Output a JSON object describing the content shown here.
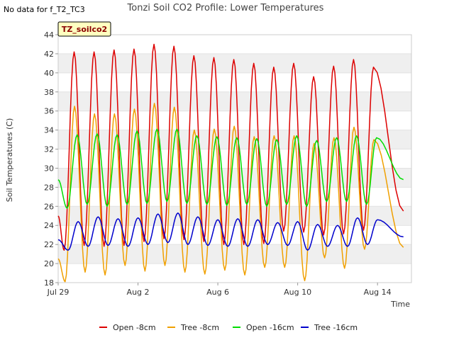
{
  "header": {
    "nodata_text": "No data for f_T2_TC3"
  },
  "chart_data": {
    "type": "line",
    "title": "Tonzi Soil CO2 Profile: Lower Temperatures",
    "xlabel": "Time",
    "ylabel": "Soil Temperatures (C)",
    "badge": "TZ_soilco2",
    "ylim": [
      18,
      44
    ],
    "yticks": [
      18,
      20,
      22,
      24,
      26,
      28,
      30,
      32,
      34,
      36,
      38,
      40,
      42,
      44
    ],
    "xlim": [
      0,
      17.7
    ],
    "xticks": [
      {
        "value": 0,
        "label": "Jul 29"
      },
      {
        "value": 4,
        "label": "Aug 2"
      },
      {
        "value": 8,
        "label": "Aug 6"
      },
      {
        "value": 12,
        "label": "Aug 10"
      },
      {
        "value": 16,
        "label": "Aug 14"
      }
    ],
    "x_unit": "days since Jul 29",
    "grid": "horizontal bands",
    "legend_position": "bottom",
    "series": [
      {
        "name": "Open -8cm",
        "color": "#dd0000",
        "daily_peaks": [
          42.2,
          42.2,
          42.4,
          42.5,
          43.0,
          42.8,
          41.8,
          41.6,
          41.4,
          41.0,
          40.6,
          41.0,
          39.6,
          40.7,
          41.4,
          40.6
        ],
        "daily_troughs": [
          21.4,
          21.9,
          21.8,
          21.9,
          22.3,
          22.6,
          22.5,
          22.3,
          22.0,
          22.0,
          22.1,
          23.4,
          23.3,
          23.0,
          23.1,
          23.5
        ],
        "start": 25.0,
        "end": 25.5
      },
      {
        "name": "Tree -8cm",
        "color": "#f0a000",
        "daily_peaks": [
          36.5,
          35.7,
          35.7,
          36.2,
          36.8,
          36.4,
          34.0,
          34.1,
          34.4,
          33.3,
          33.4,
          33.4,
          32.6,
          33.2,
          34.3,
          33.0
        ],
        "daily_troughs": [
          18.1,
          19.1,
          18.8,
          19.8,
          19.2,
          19.8,
          19.1,
          18.9,
          19.3,
          18.8,
          19.6,
          19.6,
          18.2,
          20.6,
          19.5,
          21.5
        ],
        "start": 20.5,
        "end": 21.7
      },
      {
        "name": "Open -16cm",
        "color": "#00dd00",
        "daily_peaks": [
          33.5,
          33.6,
          33.5,
          33.9,
          34.1,
          34.1,
          33.4,
          33.3,
          33.2,
          33.1,
          33.0,
          33.4,
          32.9,
          33.2,
          33.4,
          33.2
        ],
        "daily_troughs": [
          25.8,
          26.2,
          26.0,
          26.2,
          26.3,
          26.5,
          26.3,
          26.2,
          26.1,
          26.2,
          26.0,
          26.2,
          26.0,
          26.5,
          26.5,
          26.2
        ],
        "start": 28.8,
        "end": 28.8
      },
      {
        "name": "Tree -16cm",
        "color": "#0000cc",
        "daily_peaks": [
          24.4,
          24.9,
          24.7,
          24.8,
          25.2,
          25.3,
          24.9,
          24.6,
          24.7,
          24.6,
          24.3,
          24.4,
          24.1,
          24.0,
          24.8,
          24.6
        ],
        "daily_troughs": [
          21.4,
          21.8,
          21.9,
          21.8,
          22.0,
          22.2,
          22.0,
          21.9,
          21.8,
          21.8,
          22.0,
          21.9,
          21.4,
          21.8,
          21.8,
          22.0
        ],
        "start": 22.5,
        "end": 22.8
      }
    ]
  }
}
